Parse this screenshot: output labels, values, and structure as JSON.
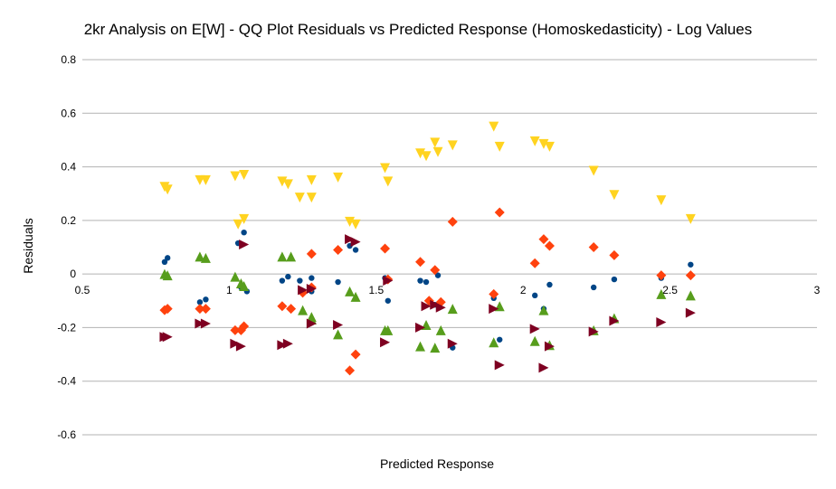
{
  "chart_data": {
    "type": "scatter",
    "title": "2kr Analysis on E[W] - QQ Plot Residuals vs Predicted Response (Homoskedasticity) - Log Values",
    "xlabel": "Predicted Response",
    "ylabel": "Residuals",
    "xlim": [
      0.5,
      3
    ],
    "ylim": [
      -0.6,
      0.8
    ],
    "x_ticks": [
      "0.5",
      "1",
      "1.5",
      "2",
      "2.5",
      "3"
    ],
    "y_ticks": [
      "-0.6",
      "-0.4",
      "-0.2",
      "0",
      "0.2",
      "0.4",
      "0.6",
      "0.8"
    ],
    "grid": "horizontal",
    "legend": "none",
    "series": [
      {
        "marker": "circle",
        "color": "#004586",
        "points": [
          [
            0.78,
            0.045
          ],
          [
            0.79,
            0.06
          ],
          [
            0.9,
            -0.105
          ],
          [
            0.92,
            -0.095
          ],
          [
            1.03,
            0.115
          ],
          [
            1.04,
            -0.05
          ],
          [
            1.06,
            -0.065
          ],
          [
            1.05,
            0.155
          ],
          [
            1.18,
            -0.025
          ],
          [
            1.2,
            -0.01
          ],
          [
            1.24,
            -0.025
          ],
          [
            1.28,
            -0.065
          ],
          [
            1.28,
            -0.015
          ],
          [
            1.37,
            -0.03
          ],
          [
            1.41,
            0.105
          ],
          [
            1.43,
            0.09
          ],
          [
            1.53,
            -0.015
          ],
          [
            1.54,
            -0.1
          ],
          [
            1.65,
            -0.025
          ],
          [
            1.67,
            -0.03
          ],
          [
            1.7,
            -0.115
          ],
          [
            1.71,
            -0.005
          ],
          [
            1.76,
            -0.275
          ],
          [
            1.9,
            -0.09
          ],
          [
            1.92,
            -0.245
          ],
          [
            2.04,
            -0.08
          ],
          [
            2.07,
            -0.13
          ],
          [
            2.09,
            -0.04
          ],
          [
            2.24,
            -0.05
          ],
          [
            2.31,
            -0.02
          ],
          [
            2.47,
            -0.015
          ],
          [
            2.57,
            0.035
          ]
        ]
      },
      {
        "marker": "diamond",
        "color": "#ff420e",
        "points": [
          [
            0.78,
            -0.135
          ],
          [
            0.79,
            -0.13
          ],
          [
            0.9,
            -0.13
          ],
          [
            0.92,
            -0.13
          ],
          [
            1.02,
            -0.21
          ],
          [
            1.04,
            -0.21
          ],
          [
            1.05,
            -0.195
          ],
          [
            1.18,
            -0.12
          ],
          [
            1.21,
            -0.13
          ],
          [
            1.25,
            -0.07
          ],
          [
            1.28,
            -0.05
          ],
          [
            1.28,
            0.075
          ],
          [
            1.37,
            0.09
          ],
          [
            1.41,
            -0.36
          ],
          [
            1.43,
            -0.3
          ],
          [
            1.53,
            0.095
          ],
          [
            1.54,
            -0.02
          ],
          [
            1.65,
            0.045
          ],
          [
            1.68,
            -0.1
          ],
          [
            1.7,
            0.015
          ],
          [
            1.72,
            -0.105
          ],
          [
            1.76,
            0.195
          ],
          [
            1.9,
            -0.075
          ],
          [
            1.92,
            0.23
          ],
          [
            2.04,
            0.04
          ],
          [
            2.07,
            0.13
          ],
          [
            2.09,
            0.105
          ],
          [
            2.24,
            0.1
          ],
          [
            2.31,
            0.07
          ],
          [
            2.47,
            -0.005
          ],
          [
            2.57,
            -0.005
          ]
        ]
      },
      {
        "marker": "triangle-down",
        "color": "#ffd320",
        "points": [
          [
            0.78,
            0.325
          ],
          [
            0.79,
            0.315
          ],
          [
            0.9,
            0.35
          ],
          [
            0.92,
            0.35
          ],
          [
            1.02,
            0.365
          ],
          [
            1.03,
            0.185
          ],
          [
            1.05,
            0.37
          ],
          [
            1.05,
            0.205
          ],
          [
            1.18,
            0.345
          ],
          [
            1.2,
            0.335
          ],
          [
            1.24,
            0.285
          ],
          [
            1.28,
            0.35
          ],
          [
            1.28,
            0.285
          ],
          [
            1.37,
            0.36
          ],
          [
            1.41,
            0.195
          ],
          [
            1.43,
            0.185
          ],
          [
            1.53,
            0.395
          ],
          [
            1.54,
            0.345
          ],
          [
            1.65,
            0.45
          ],
          [
            1.67,
            0.44
          ],
          [
            1.7,
            0.49
          ],
          [
            1.71,
            0.455
          ],
          [
            1.76,
            0.48
          ],
          [
            1.9,
            0.55
          ],
          [
            1.92,
            0.475
          ],
          [
            2.04,
            0.495
          ],
          [
            2.07,
            0.485
          ],
          [
            2.09,
            0.475
          ],
          [
            2.24,
            0.385
          ],
          [
            2.31,
            0.295
          ],
          [
            2.47,
            0.275
          ],
          [
            2.57,
            0.205
          ]
        ]
      },
      {
        "marker": "triangle-up",
        "color": "#579d1c",
        "points": [
          [
            0.78,
            0.0
          ],
          [
            0.79,
            -0.005
          ],
          [
            0.9,
            0.065
          ],
          [
            0.92,
            0.06
          ],
          [
            1.02,
            -0.01
          ],
          [
            1.04,
            -0.035
          ],
          [
            1.05,
            -0.045
          ],
          [
            1.18,
            0.065
          ],
          [
            1.21,
            0.065
          ],
          [
            1.25,
            -0.135
          ],
          [
            1.28,
            -0.17
          ],
          [
            1.28,
            -0.16
          ],
          [
            1.37,
            -0.225
          ],
          [
            1.41,
            -0.065
          ],
          [
            1.43,
            -0.085
          ],
          [
            1.53,
            -0.21
          ],
          [
            1.54,
            -0.21
          ],
          [
            1.65,
            -0.27
          ],
          [
            1.67,
            -0.19
          ],
          [
            1.7,
            -0.275
          ],
          [
            1.72,
            -0.21
          ],
          [
            1.76,
            -0.13
          ],
          [
            1.9,
            -0.255
          ],
          [
            1.92,
            -0.12
          ],
          [
            2.04,
            -0.25
          ],
          [
            2.07,
            -0.135
          ],
          [
            2.09,
            -0.265
          ],
          [
            2.24,
            -0.21
          ],
          [
            2.31,
            -0.165
          ],
          [
            2.47,
            -0.075
          ],
          [
            2.57,
            -0.08
          ]
        ]
      },
      {
        "marker": "triangle-right",
        "color": "#7e0021",
        "points": [
          [
            0.78,
            -0.235
          ],
          [
            0.79,
            -0.235
          ],
          [
            0.9,
            -0.185
          ],
          [
            0.92,
            -0.185
          ],
          [
            1.02,
            -0.26
          ],
          [
            1.04,
            -0.27
          ],
          [
            1.05,
            0.11
          ],
          [
            1.18,
            -0.265
          ],
          [
            1.2,
            -0.26
          ],
          [
            1.25,
            -0.06
          ],
          [
            1.28,
            -0.185
          ],
          [
            1.28,
            -0.055
          ],
          [
            1.37,
            -0.19
          ],
          [
            1.41,
            0.13
          ],
          [
            1.43,
            0.12
          ],
          [
            1.53,
            -0.255
          ],
          [
            1.54,
            -0.025
          ],
          [
            1.65,
            -0.2
          ],
          [
            1.67,
            -0.12
          ],
          [
            1.7,
            -0.115
          ],
          [
            1.72,
            -0.125
          ],
          [
            1.76,
            -0.26
          ],
          [
            1.9,
            -0.13
          ],
          [
            1.92,
            -0.34
          ],
          [
            2.04,
            -0.205
          ],
          [
            2.07,
            -0.35
          ],
          [
            2.09,
            -0.27
          ],
          [
            2.24,
            -0.215
          ],
          [
            2.31,
            -0.175
          ],
          [
            2.47,
            -0.18
          ],
          [
            2.57,
            -0.145
          ]
        ]
      }
    ]
  }
}
